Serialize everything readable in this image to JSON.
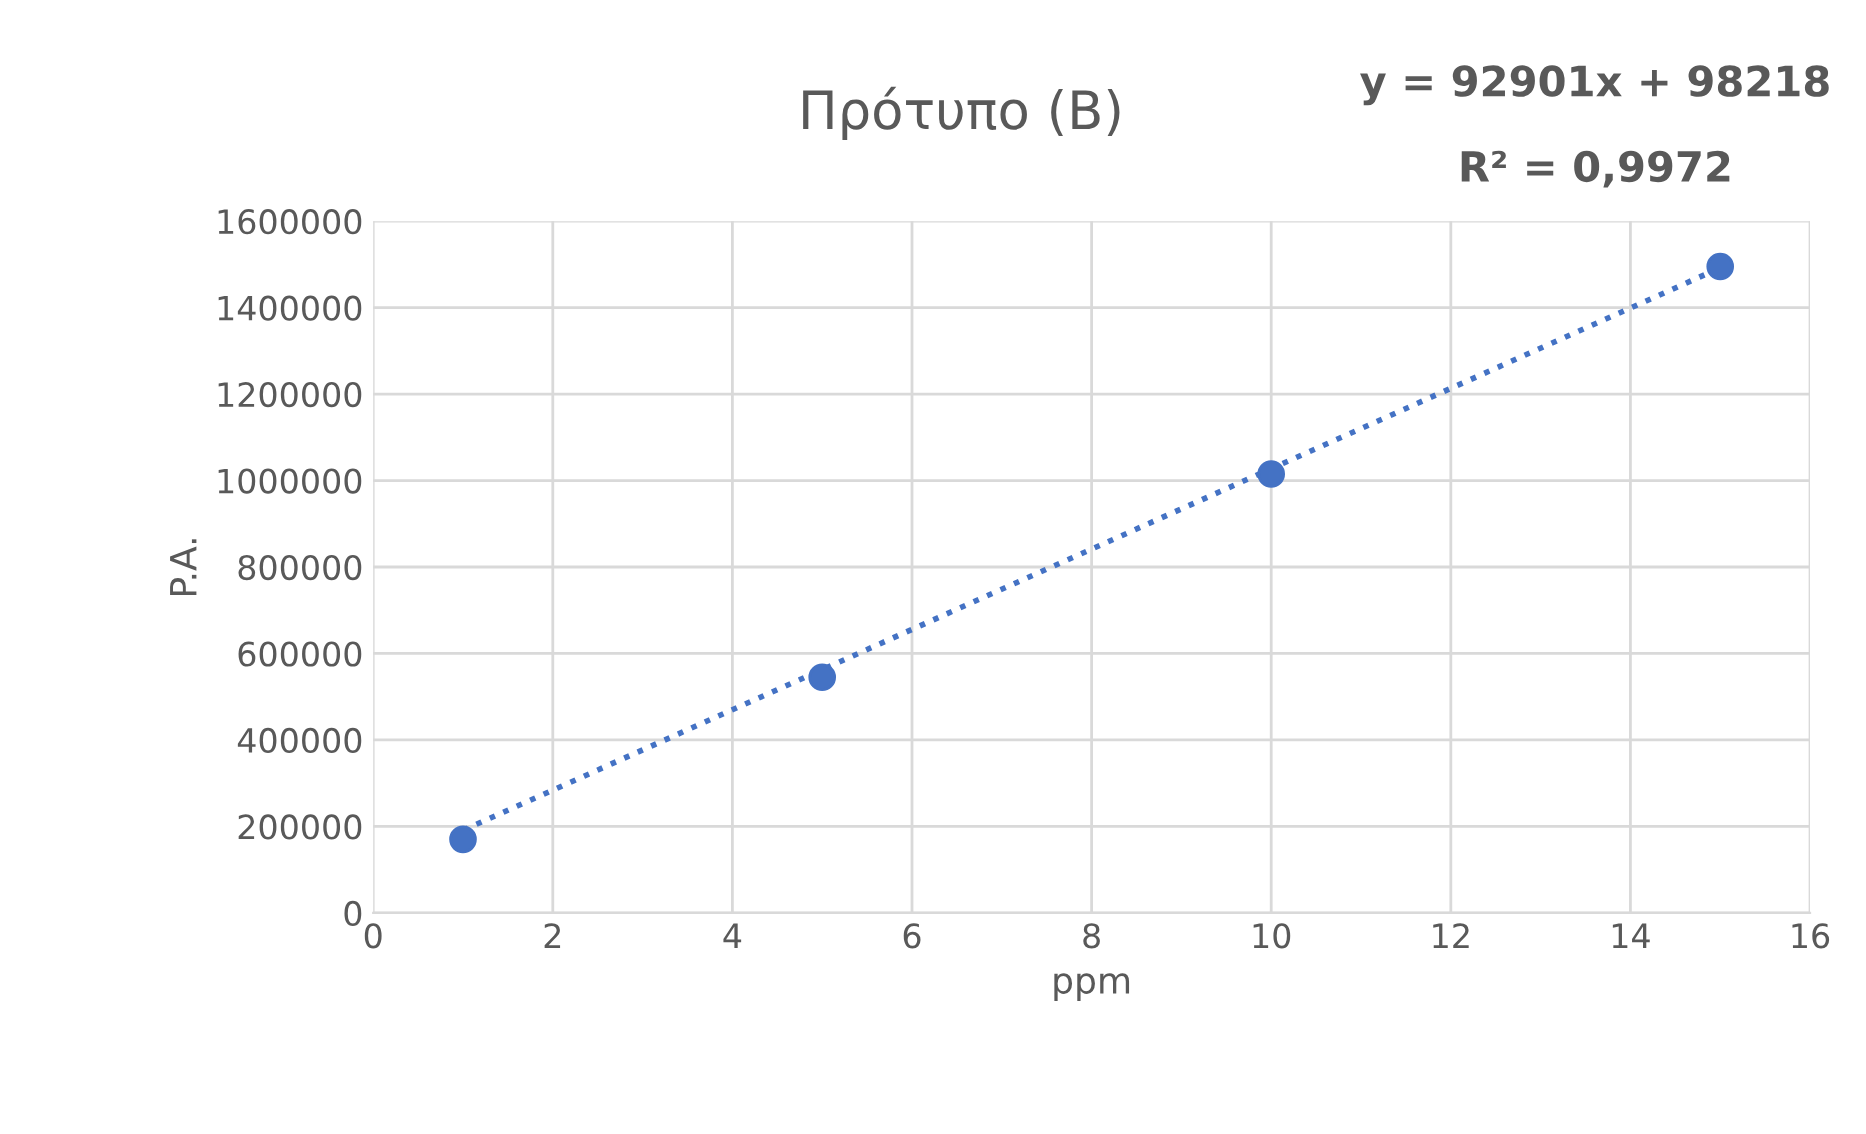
{
  "chart_data": {
    "type": "scatter",
    "title": "Πρότυπο (Β)",
    "xlabel": "ppm",
    "ylabel": "P.A.",
    "series": [
      {
        "color": "#4472c4",
        "marker": "circle",
        "x": [
          1,
          5,
          10,
          15
        ],
        "values": [
          170000,
          545000,
          1015000,
          1495000
        ]
      },
      {
        "type": "line",
        "color": "#4472c4",
        "line_style": "dotted",
        "marker": "none",
        "x": [
          1,
          15
        ],
        "values": [
          191000,
          1492000
        ]
      }
    ],
    "annotations": [
      "y = 92901x + 98218",
      "R² = 0,9972"
    ],
    "xlim": [
      0,
      16
    ],
    "xticks": [
      0,
      2,
      4,
      6,
      8,
      10,
      12,
      14,
      16
    ],
    "ylim": [
      0,
      1600000
    ],
    "yticks": [
      0,
      200000,
      400000,
      600000,
      800000,
      1000000,
      1200000,
      1400000,
      1600000
    ],
    "grid": true,
    "legend": false
  }
}
